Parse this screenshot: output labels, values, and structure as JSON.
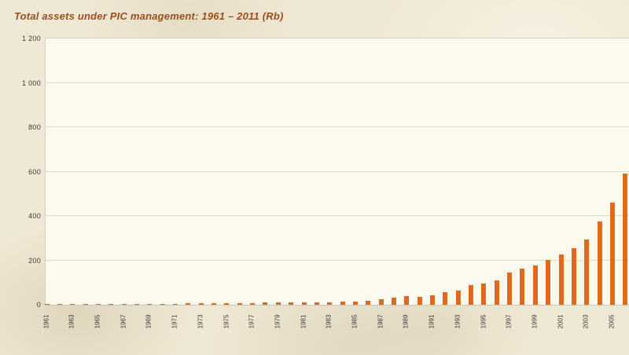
{
  "page": {
    "title": "Total assets under PIC management: 1961 – 2011 (Rb)"
  },
  "colors": {
    "bar": "#E2671F",
    "title_text": "#9C4E1E",
    "axis_text": "#3B3B3B",
    "grid_line": "#DCD8CA",
    "plot_background": "#FCF9ED",
    "page_background": "#EFE8D4"
  },
  "chart_data": {
    "type": "bar",
    "title": "Total assets under PIC management: 1961 – 2011 (Rb)",
    "xlabel": "",
    "ylabel": "",
    "ylim": [
      0,
      1200
    ],
    "grid": "horizontal",
    "legend": "none",
    "bar_color": "#E2671F",
    "y_ticks": [
      0,
      200,
      400,
      600,
      800,
      1000,
      1200
    ],
    "y_tick_labels": [
      "0",
      "200",
      "400",
      "600",
      "800",
      "1 000",
      "1 200"
    ],
    "x_tick_labels": [
      "1961",
      "1963",
      "1965",
      "1967",
      "1969",
      "1971",
      "1973",
      "1975",
      "1977",
      "1979",
      "1981",
      "1983",
      "1985",
      "1987",
      "1989",
      "1991",
      "1993",
      "1995",
      "1997",
      "1999",
      "2001",
      "2003",
      "2005"
    ],
    "categories": [
      1961,
      1962,
      1963,
      1964,
      1965,
      1966,
      1967,
      1968,
      1969,
      1970,
      1971,
      1972,
      1973,
      1974,
      1975,
      1976,
      1977,
      1978,
      1979,
      1980,
      1981,
      1982,
      1983,
      1984,
      1985,
      1986,
      1987,
      1988,
      1989,
      1990,
      1991,
      1992,
      1993,
      1994,
      1995,
      1996,
      1997,
      1998,
      1999,
      2000,
      2001,
      2002,
      2003,
      2004,
      2005,
      2006
    ],
    "values": [
      1,
      1,
      2,
      2,
      2,
      3,
      3,
      4,
      4,
      5,
      5,
      6,
      6,
      7,
      7,
      8,
      8,
      9,
      9,
      10,
      11,
      11,
      12,
      13,
      14,
      19,
      26,
      31,
      38,
      35,
      43,
      57,
      64,
      87,
      96,
      109,
      145,
      163,
      177,
      202,
      227,
      255,
      294,
      375,
      460,
      590
    ]
  }
}
